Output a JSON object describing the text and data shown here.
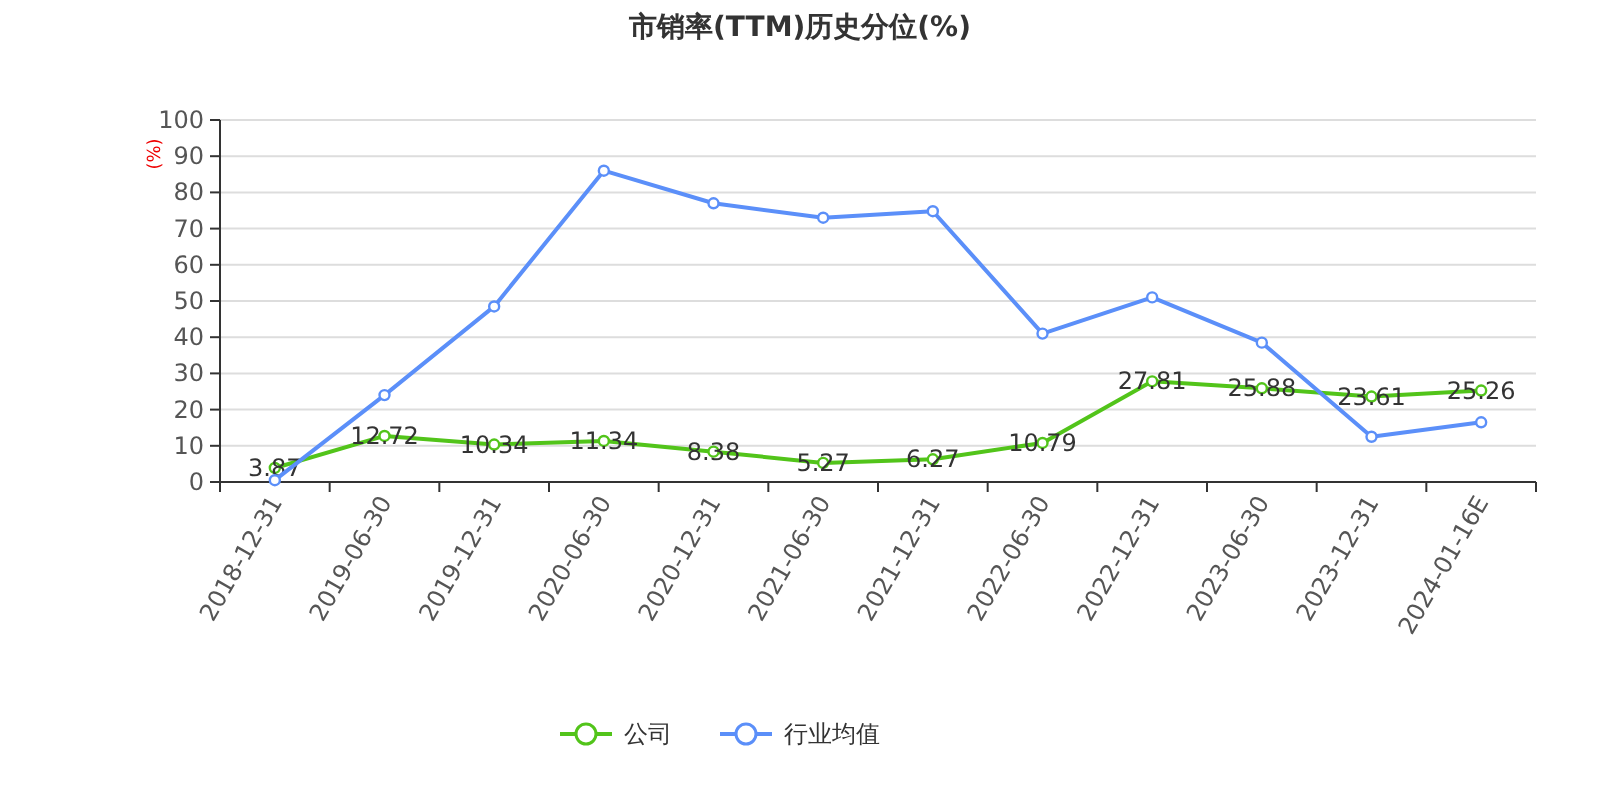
{
  "chart_data": {
    "type": "line",
    "title": "市销率(TTM)历史分位(%)",
    "ylabel": "(%)",
    "categories": [
      "2018-12-31",
      "2019-06-30",
      "2019-12-31",
      "2020-06-30",
      "2020-12-31",
      "2021-06-30",
      "2021-12-31",
      "2022-06-30",
      "2022-12-31",
      "2023-06-30",
      "2023-12-31",
      "2024-01-16E"
    ],
    "series": [
      {
        "name": "公司",
        "color": "#52c41a",
        "values": [
          3.87,
          12.72,
          10.34,
          11.34,
          8.38,
          5.27,
          6.27,
          10.79,
          27.81,
          25.88,
          23.61,
          25.26
        ],
        "value_labels": [
          "3.87",
          "12.72",
          "10.34",
          "11.34",
          "8.38",
          "5.27",
          "6.27",
          "10.79",
          "27.81",
          "25.88",
          "23.61",
          "25.26"
        ]
      },
      {
        "name": "行业均值",
        "color": "#5b8ff9",
        "values": [
          0.5,
          24,
          48.5,
          86,
          77,
          73,
          74.8,
          41,
          51,
          38.5,
          12.5,
          16.5
        ]
      }
    ],
    "ylim": [
      0,
      100
    ],
    "yticks": [
      0,
      10,
      20,
      30,
      40,
      50,
      60,
      70,
      80,
      90,
      100
    ],
    "grid": "y",
    "legend": "bottom",
    "marker": "circle",
    "line_style": "solid"
  }
}
